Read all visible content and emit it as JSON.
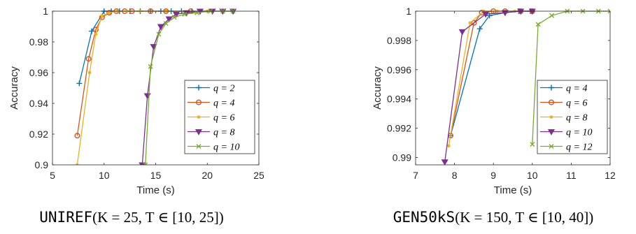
{
  "chart_data": [
    {
      "type": "line",
      "caption_prefix": "UNIREF",
      "caption_params": "(K = 25, T ∈ [10, 25])",
      "xlabel": "Time (s)",
      "ylabel": "Accuracy",
      "xlim": [
        5,
        25
      ],
      "ylim": [
        0.9,
        1.0
      ],
      "xticks": [
        5,
        10,
        15,
        20,
        25
      ],
      "yticks": [
        0.9,
        0.92,
        0.94,
        0.96,
        0.98,
        1
      ],
      "ytick_labels": [
        "0.9",
        "0.92",
        "0.94",
        "0.96",
        "0.98",
        "1"
      ],
      "grid": false,
      "legend_position": "lower-right",
      "series": [
        {
          "name": "q = 2",
          "color": "#0072BD",
          "marker": "plus",
          "x": [
            7.6,
            8.8,
            10.0,
            10.7,
            11.5,
            12.5,
            13.5,
            14.5,
            15.5,
            16.5,
            17.5,
            18.5
          ],
          "y": [
            0.953,
            0.987,
            1.0,
            1.0,
            1.0,
            1.0,
            1.0,
            1.0,
            1.0,
            1.0,
            1.0,
            1.0
          ]
        },
        {
          "name": "q = 4",
          "color": "#D95319",
          "marker": "circle",
          "x": [
            7.4,
            8.5,
            9.2,
            9.8,
            10.5,
            11.2,
            12.0,
            12.7,
            14.5,
            16.0,
            18.4
          ],
          "y": [
            0.919,
            0.969,
            0.988,
            0.996,
            0.999,
            1.0,
            1.0,
            1.0,
            1.0,
            1.0,
            1.0
          ]
        },
        {
          "name": "q = 6",
          "color": "#EDB120",
          "marker": "dot",
          "x": [
            7.4,
            8.6,
            9.2,
            9.8,
            10.5,
            11.3,
            12.2,
            13.5,
            16.0,
            20.0
          ],
          "y": [
            0.9,
            0.96,
            0.985,
            0.997,
            0.999,
            1.0,
            1.0,
            1.0,
            1.0,
            1.0
          ]
        },
        {
          "name": "q = 8",
          "color": "#7E2F8E",
          "marker": "triangle-down",
          "x": [
            13.7,
            14.2,
            14.8,
            15.5,
            16.3,
            17.0,
            18.0,
            19.3,
            20.5,
            21.5,
            22.5
          ],
          "y": [
            0.9,
            0.945,
            0.977,
            0.99,
            0.995,
            0.998,
            0.999,
            1.0,
            1.0,
            1.0,
            1.0
          ]
        },
        {
          "name": "q = 10",
          "color": "#77AC30",
          "marker": "x",
          "x": [
            14.0,
            14.5,
            15.3,
            16.0,
            16.8,
            17.8,
            19.0,
            20.3,
            21.5,
            22.5
          ],
          "y": [
            0.9,
            0.964,
            0.985,
            0.992,
            0.996,
            0.998,
            0.999,
            1.0,
            1.0,
            1.0
          ]
        }
      ]
    },
    {
      "type": "line",
      "caption_prefix": "GEN50kS",
      "caption_params": "(K = 150, T ∈ [10, 40])",
      "xlabel": "Time (s)",
      "ylabel": "Accuracy",
      "xlim": [
        7,
        12
      ],
      "ylim": [
        0.9895,
        1.0
      ],
      "xticks": [
        7,
        8,
        9,
        10,
        11,
        12
      ],
      "yticks": [
        0.99,
        0.992,
        0.994,
        0.996,
        0.998,
        1
      ],
      "ytick_labels": [
        "0.99",
        "0.992",
        "0.994",
        "0.996",
        "0.998",
        "1"
      ],
      "grid": false,
      "legend_position": "lower-right",
      "series": [
        {
          "name": "q = 4",
          "color": "#0072BD",
          "marker": "plus",
          "x": [
            7.9,
            8.65,
            8.9,
            9.3,
            9.65,
            9.95
          ],
          "y": [
            0.9915,
            0.9988,
            0.9997,
            0.9999,
            1.0,
            1.0
          ]
        },
        {
          "name": "q = 6",
          "color": "#D95319",
          "marker": "circle",
          "x": [
            7.9,
            8.5,
            8.7,
            9.0,
            9.3,
            9.7,
            10.0
          ],
          "y": [
            0.9915,
            0.9992,
            0.9999,
            1.0,
            1.0,
            1.0,
            1.0
          ]
        },
        {
          "name": "q = 8",
          "color": "#EDB120",
          "marker": "dot",
          "x": [
            7.85,
            8.4,
            8.75,
            9.1,
            9.55,
            10.0
          ],
          "y": [
            0.9908,
            0.9992,
            1.0,
            1.0,
            1.0,
            1.0
          ]
        },
        {
          "name": "q = 10",
          "color": "#7E2F8E",
          "marker": "triangle-down",
          "x": [
            7.75,
            8.2,
            8.8,
            9.3,
            9.7,
            10.0
          ],
          "y": [
            0.9897,
            0.9986,
            0.9998,
            0.9999,
            1.0,
            1.0
          ]
        },
        {
          "name": "q = 12",
          "color": "#77AC30",
          "marker": "x",
          "x": [
            10.0,
            10.15,
            10.5,
            10.9,
            11.3,
            11.7,
            12.0
          ],
          "y": [
            0.9909,
            0.9991,
            0.9997,
            1.0,
            1.0,
            1.0,
            1.0
          ]
        }
      ]
    }
  ]
}
